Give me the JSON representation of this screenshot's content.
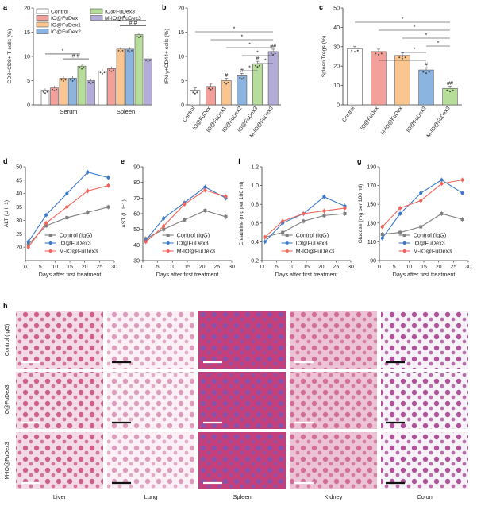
{
  "panels": {
    "a": "a",
    "b": "b",
    "c": "c",
    "d": "d",
    "e": "e",
    "f": "f",
    "g": "g",
    "h": "h"
  },
  "colors": {
    "Control": "#ffffff",
    "IO@FuDex": "#f4a09a",
    "IO@FuDex1": "#fbc58f",
    "IO@FuDex2": "#8cb4e0",
    "IO@FuDex3": "#b7dd9a",
    "M-IO@FuDex3": "#b3acd8",
    "line_control": "#7f7f7f",
    "line_io": "#3a78c8",
    "line_mio": "#f0645a"
  },
  "chart_data": [
    {
      "type": "bar",
      "panel": "a",
      "ylabel": "CD3+CD8+ T cells (%)",
      "ylim": [
        0,
        20
      ],
      "yticks": [
        "0",
        "5",
        "10",
        "15",
        "20"
      ],
      "categories": [
        "Serum",
        "Spleen"
      ],
      "legend": [
        "Control",
        "IO@FuDex",
        "IO@FuDex1",
        "IO@FuDex2",
        "IO@FuDex3",
        "M-IO@FuDex3"
      ],
      "series": [
        {
          "name": "Control",
          "values": [
            3.0,
            7.0
          ]
        },
        {
          "name": "IO@FuDex",
          "values": [
            3.5,
            7.5
          ]
        },
        {
          "name": "IO@FuDex1",
          "values": [
            5.5,
            11.5
          ]
        },
        {
          "name": "IO@FuDex2",
          "values": [
            5.5,
            11.5
          ]
        },
        {
          "name": "IO@FuDex3",
          "values": [
            8.0,
            14.5
          ]
        },
        {
          "name": "M-IO@FuDex3",
          "values": [
            5.0,
            9.5
          ]
        }
      ]
    },
    {
      "type": "bar",
      "panel": "b",
      "ylabel": "IFN-γ+CD44+ cells (%)",
      "ylim": [
        0,
        20
      ],
      "yticks": [
        "0",
        "5",
        "10",
        "15",
        "20"
      ],
      "categories": [
        "Control",
        "IO@FuDex",
        "IO@FuDex1",
        "IO@FuDex2",
        "IO@FuDex3",
        "M-IO@FuDex3"
      ],
      "values": [
        3.0,
        3.8,
        5.0,
        6.0,
        8.5,
        11.0
      ],
      "markers": [
        "",
        "",
        "#",
        "#",
        "#",
        "##"
      ]
    },
    {
      "type": "bar",
      "panel": "c",
      "ylabel": "Spleen Tregs (%)",
      "ylim": [
        0,
        50
      ],
      "yticks": [
        "0",
        "10",
        "20",
        "30",
        "40",
        "50"
      ],
      "categories": [
        "Control",
        "IO@FuDex",
        "M-IO@FuDex",
        "IO@FuDex3",
        "M-IO@FuDex3"
      ],
      "values": [
        29.0,
        27.5,
        25.5,
        18.0,
        8.5
      ],
      "markers": [
        "",
        "",
        "",
        "#",
        "##"
      ]
    },
    {
      "type": "line",
      "panel": "d",
      "xlabel": "Days after first treatment",
      "ylabel": "ALT (U l−1)",
      "xlim": [
        0,
        30
      ],
      "ylim": [
        15,
        50
      ],
      "xticks": [
        "0",
        "5",
        "10",
        "15",
        "20",
        "25",
        "30"
      ],
      "yticks": [
        "20",
        "25",
        "30",
        "35",
        "40",
        "45",
        "50"
      ],
      "x": [
        1,
        7,
        14,
        21,
        28
      ],
      "series": [
        {
          "name": "Control (IgG)",
          "values": [
            21,
            28,
            31,
            33,
            35
          ]
        },
        {
          "name": "IO@FuDex3",
          "values": [
            22,
            32,
            40,
            48,
            46
          ]
        },
        {
          "name": "M-IO@FuDex3",
          "values": [
            20,
            29,
            35,
            41,
            43
          ]
        }
      ]
    },
    {
      "type": "line",
      "panel": "e",
      "xlabel": "Days after first treatment",
      "ylabel": "AST (U l−1)",
      "xlim": [
        0,
        30
      ],
      "ylim": [
        30,
        90
      ],
      "xticks": [
        "0",
        "5",
        "10",
        "15",
        "20",
        "25",
        "30"
      ],
      "yticks": [
        "30",
        "40",
        "50",
        "60",
        "70",
        "80",
        "90"
      ],
      "x": [
        1,
        7,
        14,
        21,
        28
      ],
      "series": [
        {
          "name": "Control (IgG)",
          "values": [
            44,
            50,
            56,
            62,
            58
          ]
        },
        {
          "name": "IO@FuDex3",
          "values": [
            43,
            57,
            67,
            77,
            70
          ]
        },
        {
          "name": "M-IO@FuDex3",
          "values": [
            42,
            52,
            66,
            75,
            71
          ]
        }
      ]
    },
    {
      "type": "line",
      "panel": "f",
      "xlabel": "Days after first treatment",
      "ylabel": "Creatinine (mg per 100 ml)",
      "xlim": [
        0,
        30
      ],
      "ylim": [
        0.2,
        1.2
      ],
      "xticks": [
        "0",
        "5",
        "10",
        "15",
        "20",
        "25",
        "30"
      ],
      "yticks": [
        "0.2",
        "0.4",
        "0.6",
        "0.8",
        "1.0",
        "1.2"
      ],
      "x": [
        1,
        7,
        14,
        21,
        28
      ],
      "series": [
        {
          "name": "Control (IgG)",
          "values": [
            0.45,
            0.5,
            0.62,
            0.68,
            0.7
          ]
        },
        {
          "name": "IO@FuDex3",
          "values": [
            0.4,
            0.6,
            0.7,
            0.88,
            0.78
          ]
        },
        {
          "name": "M-IO@FuDex3",
          "values": [
            0.45,
            0.62,
            0.7,
            0.73,
            0.76
          ]
        }
      ]
    },
    {
      "type": "line",
      "panel": "g",
      "xlabel": "Days after first treatment",
      "ylabel": "Glucose (mg per 100 ml)",
      "xlim": [
        0,
        30
      ],
      "ylim": [
        90,
        190
      ],
      "xticks": [
        "0",
        "5",
        "10",
        "15",
        "20",
        "25",
        "30"
      ],
      "yticks": [
        "90",
        "110",
        "130",
        "150",
        "170",
        "190"
      ],
      "x": [
        1,
        7,
        14,
        21,
        28
      ],
      "series": [
        {
          "name": "Control (IgG)",
          "values": [
            118,
            120,
            126,
            140,
            134
          ]
        },
        {
          "name": "IO@FuDex3",
          "values": [
            114,
            140,
            162,
            176,
            162
          ]
        },
        {
          "name": "M-IO@FuDex3",
          "values": [
            126,
            146,
            154,
            172,
            176
          ]
        }
      ]
    }
  ],
  "histology": {
    "rows": [
      "Control (IgG)",
      "IO@FuDex3",
      "M-IO@FuDex3"
    ],
    "columns": [
      "Liver",
      "Lung",
      "Spleen",
      "Kidney",
      "Colon"
    ],
    "tissue_colors": [
      [
        "#c84a7a",
        "#f2dbe6"
      ],
      [
        "#d88db0",
        "#fbf0f5"
      ],
      [
        "#7a57b8",
        "#c53f7a"
      ],
      [
        "#cf5f8e",
        "#ebc3d4"
      ],
      [
        "#a2368a",
        "#f5f3f8"
      ]
    ]
  }
}
